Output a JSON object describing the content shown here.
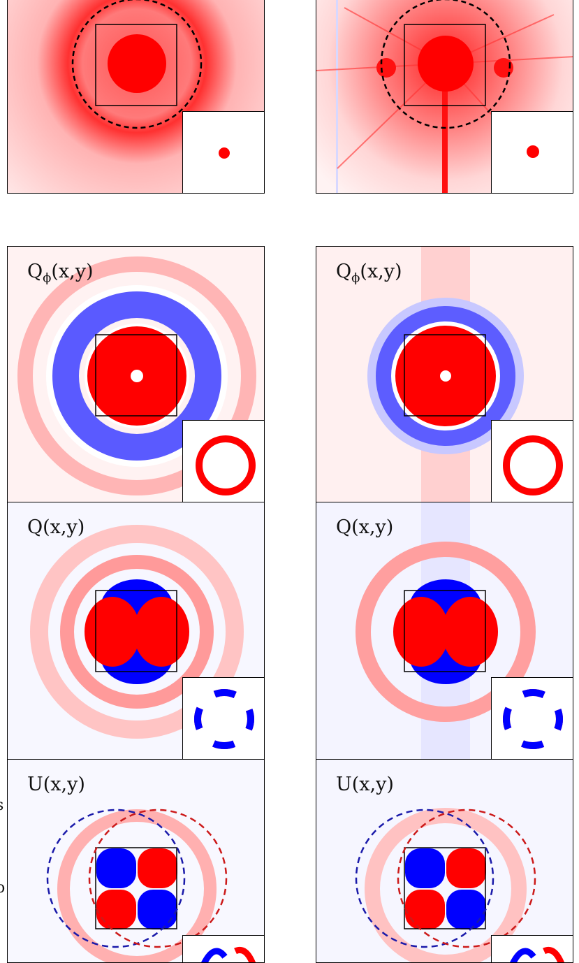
{
  "panels": {
    "stokes_i_model": {
      "label": ""
    },
    "stokes_i_obs": {
      "label": ""
    },
    "qphi_model": {
      "label_main": "Q",
      "label_sub": "ϕ",
      "label_args": "(x,y)"
    },
    "qphi_obs": {
      "label_main": "Q",
      "label_sub": "ϕ",
      "label_args": "(x,y)"
    },
    "q_model": {
      "label": "Q(x,y)"
    },
    "q_obs": {
      "label": "Q(x,y)"
    },
    "u_model": {
      "label": "U(x,y)"
    },
    "u_obs": {
      "label": "U(x,y)"
    }
  },
  "colors": {
    "positive": "#ff0000",
    "negative": "#0000ff",
    "background": "#ffffff"
  },
  "edge_glyphs": [
    "s",
    "o"
  ]
}
